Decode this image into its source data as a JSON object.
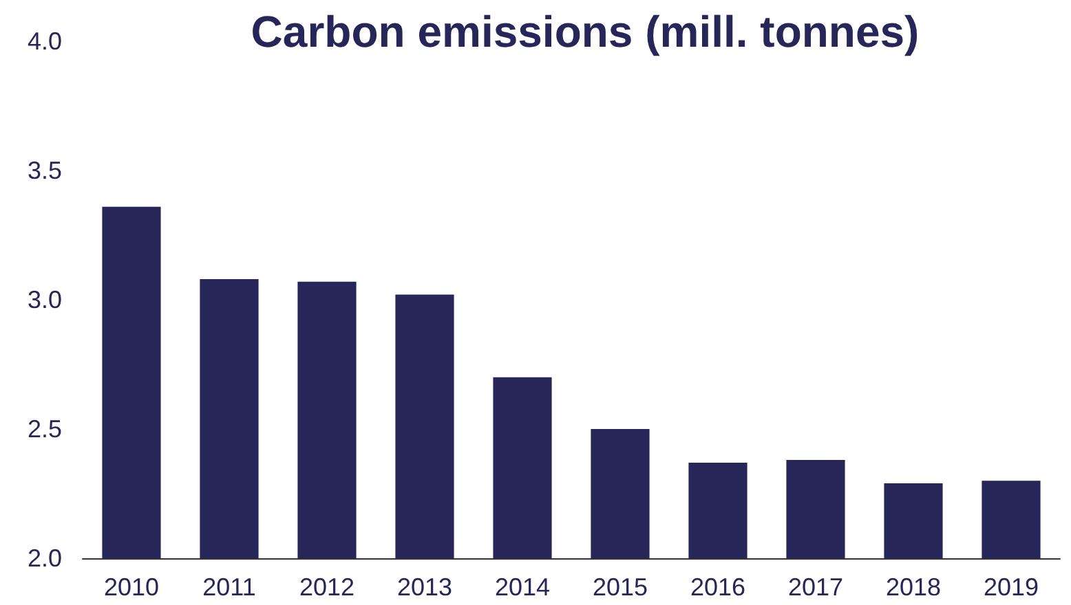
{
  "chart_data": {
    "type": "bar",
    "title": "Carbon emissions (mill. tonnes)",
    "categories": [
      "2010",
      "2011",
      "2012",
      "2013",
      "2014",
      "2015",
      "2016",
      "2017",
      "2018",
      "2019"
    ],
    "values": [
      3.36,
      3.08,
      3.07,
      3.02,
      2.7,
      2.5,
      2.37,
      2.38,
      2.29,
      2.3
    ],
    "color": "#262659",
    "ylim": [
      2.0,
      4.0
    ],
    "yticks": [
      {
        "value": 2.0,
        "label": "2.0"
      },
      {
        "value": 2.5,
        "label": "2.5"
      },
      {
        "value": 3.0,
        "label": "3.0"
      },
      {
        "value": 3.5,
        "label": "3.5"
      },
      {
        "value": 4.0,
        "label": "4.0"
      }
    ],
    "grid": false
  }
}
